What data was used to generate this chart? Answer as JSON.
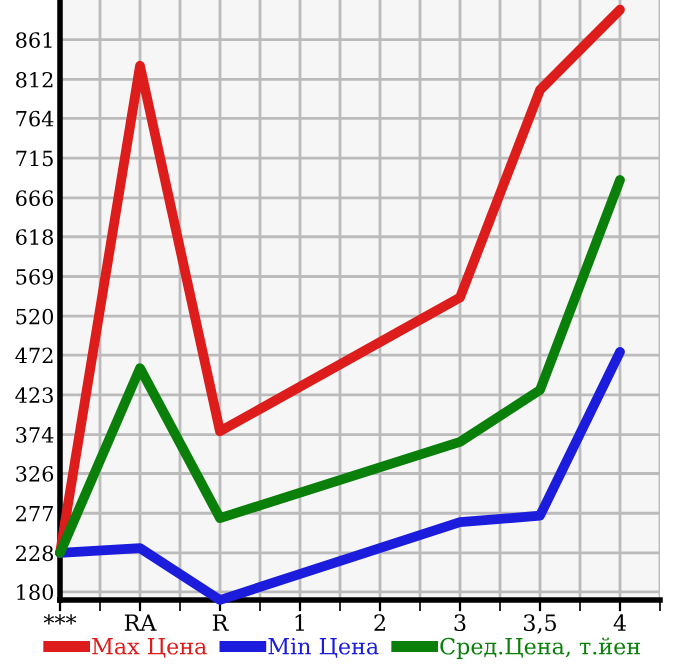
{
  "chart_data": {
    "type": "line",
    "categories": [
      "***",
      "RA",
      "R",
      "1",
      "2",
      "3",
      "3,5",
      "4"
    ],
    "series": [
      {
        "name": "Max Цена",
        "color": "#dd1c1c",
        "values": [
          228,
          829,
          378,
          null,
          null,
          543,
          799,
          898
        ]
      },
      {
        "name": "Min Цена",
        "color": "#1c1cdd",
        "values": [
          228,
          234,
          170,
          null,
          null,
          266,
          274,
          476
        ]
      },
      {
        "name": "Сред.Цена, т.йен",
        "color": "#0a800a",
        "values": [
          228,
          456,
          271,
          null,
          null,
          365,
          429,
          688
        ]
      }
    ],
    "ylim": [
      170,
      910
    ],
    "yticks": [
      180,
      228,
      277,
      326,
      374,
      423,
      472,
      520,
      569,
      618,
      666,
      715,
      764,
      812,
      861
    ],
    "grid": true,
    "legend": "bottom",
    "marker": "none",
    "line_style": "solid"
  }
}
